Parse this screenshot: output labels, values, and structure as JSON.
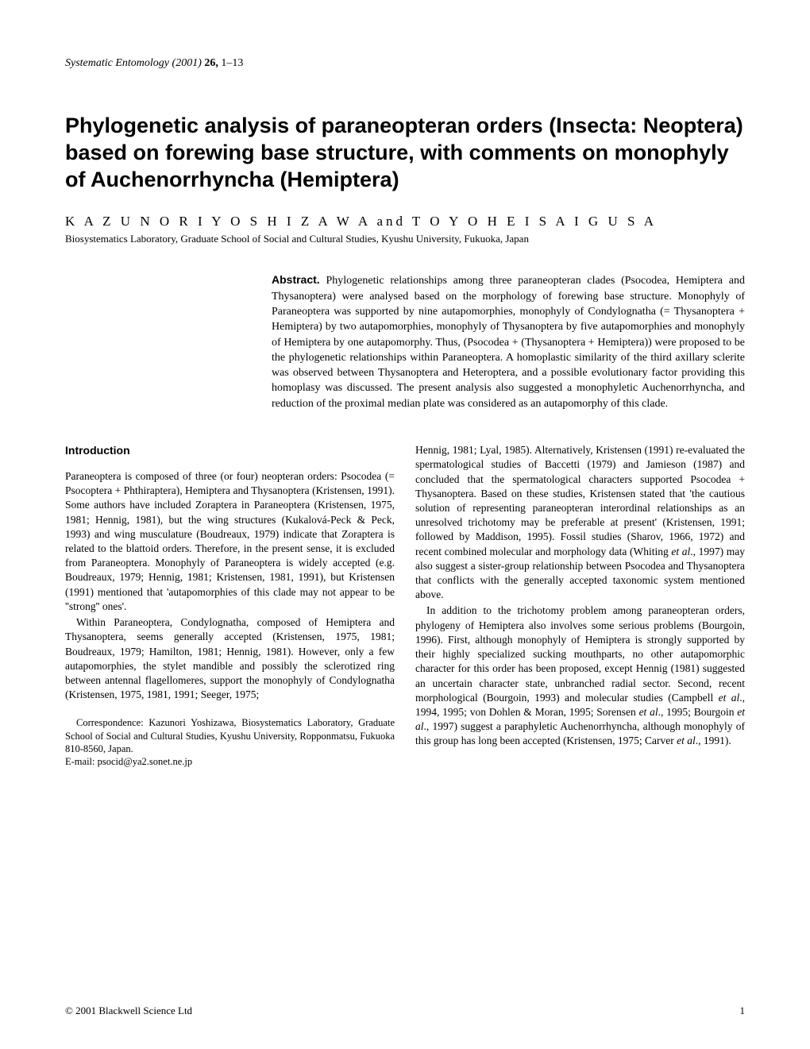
{
  "journal": {
    "name": "Systematic Entomology",
    "year": "(2001)",
    "volume_pages": "26,",
    "pages": "1–13"
  },
  "title": "Phylogenetic analysis of paraneopteran orders (Insecta: Neoptera) based on forewing base structure, with comments on monophyly of Auchenorrhyncha (Hemiptera)",
  "authors": "K A Z U N O R I   Y O S H I Z A W A  and  T O Y O H E I   S A I G U S A",
  "affiliation": "Biosystematics Laboratory, Graduate School of Social and Cultural Studies, Kyushu University, Fukuoka, Japan",
  "abstract": {
    "label": "Abstract.",
    "text": "Phylogenetic relationships among three paraneopteran clades (Psocodea, Hemiptera and Thysanoptera) were analysed based on the morphology of forewing base structure. Monophyly of Paraneoptera was supported by nine autapomorphies, monophyly of Condylognatha (= Thysanoptera + Hemiptera) by two autapomorphies, monophyly of Thysanoptera by five autapomorphies and monophyly of Hemiptera by one autapomorphy. Thus, (Psocodea + (Thysanoptera + Hemiptera)) were proposed to be the phylogenetic relationships within Paraneoptera. A homoplastic similarity of the third axillary sclerite was observed between Thysanoptera and Heteroptera, and a possible evolutionary factor providing this homoplasy was discussed. The present analysis also suggested a monophyletic Auchenorrhyncha, and reduction of the proximal median plate was considered as an autapomorphy of this clade."
  },
  "intro_heading": "Introduction",
  "left_p1": "Paraneoptera is composed of three (or four) neopteran orders: Psocodea (= Psocoptera + Phthiraptera), Hemiptera and Thysanoptera (Kristensen, 1991). Some authors have included Zoraptera in Paraneoptera (Kristensen, 1975, 1981; Hennig, 1981), but the wing structures (Kukalová-Peck & Peck, 1993) and wing musculature (Boudreaux, 1979) indicate that Zoraptera is related to the blattoid orders. Therefore, in the present sense, it is excluded from Paraneoptera. Monophyly of Paraneoptera is widely accepted (e.g. Boudreaux, 1979; Hennig, 1981; Kristensen, 1981, 1991), but Kristensen (1991) mentioned that 'autapomorphies of this clade may not appear to be ''strong'' ones'.",
  "left_p2": "Within Paraneoptera, Condylognatha, composed of Hemiptera and Thysanoptera, seems generally accepted (Kristensen, 1975, 1981; Boudreaux, 1979; Hamilton, 1981; Hennig, 1981). However, only a few autapomorphies, the stylet mandible and possibly the sclerotized ring between antennal flagellomeres, support the monophyly of Condylognatha (Kristensen, 1975, 1981, 1991; Seeger, 1975;",
  "correspondence": {
    "line1": "Correspondence: Kazunori Yoshizawa, Biosystematics Laboratory, Graduate School of Social and Cultural Studies, Kyushu University, Ropponmatsu, Fukuoka 810-8560, Japan.",
    "line2": "E-mail: psocid@ya2.sonet.ne.jp"
  },
  "right_p1_pre": "Hennig, 1981; Lyal, 1985). Alternatively, Kristensen (1991) re-evaluated the spermatological studies of Baccetti (1979) and Jamieson (1987) and concluded that the spermatological characters supported Psocodea + Thysanoptera. Based on these studies, Kristensen stated that 'the cautious solution of representing paraneopteran interordinal relationships as an unresolved trichotomy may be preferable at present' (Kristensen, 1991; followed by Maddison, 1995). Fossil studies (Sharov, 1966, 1972) and recent combined molecular and morphology data (Whiting ",
  "right_p1_em": "et al",
  "right_p1_post": "., 1997) may also suggest a sister-group relationship between Psocodea and Thysanoptera that conflicts with the generally accepted taxonomic system mentioned above.",
  "right_p2_a": "In addition to the trichotomy problem among paraneopteran orders, phylogeny of Hemiptera also involves some serious problems (Bourgoin, 1996). First, although monophyly of Hemiptera is strongly supported by their highly specialized sucking mouthparts, no other autapomorphic character for this order has been proposed, except Hennig (1981) suggested an uncertain character state, unbranched radial sector. Second, recent morphological (Bourgoin, 1993) and molecular studies (Campbell ",
  "right_p2_b": "et al",
  "right_p2_c": "., 1994, 1995; von Dohlen & Moran, 1995; Sorensen ",
  "right_p2_d": "et al",
  "right_p2_e": "., 1995; Bourgoin ",
  "right_p2_f": "et al",
  "right_p2_g": "., 1997) suggest a paraphyletic Auchenorrhyncha, although monophyly of this group has long been accepted (Kristensen, 1975; Carver ",
  "right_p2_h": "et al",
  "right_p2_i": "., 1991).",
  "footer": {
    "copyright": "© 2001 Blackwell Science Ltd",
    "page": "1"
  }
}
